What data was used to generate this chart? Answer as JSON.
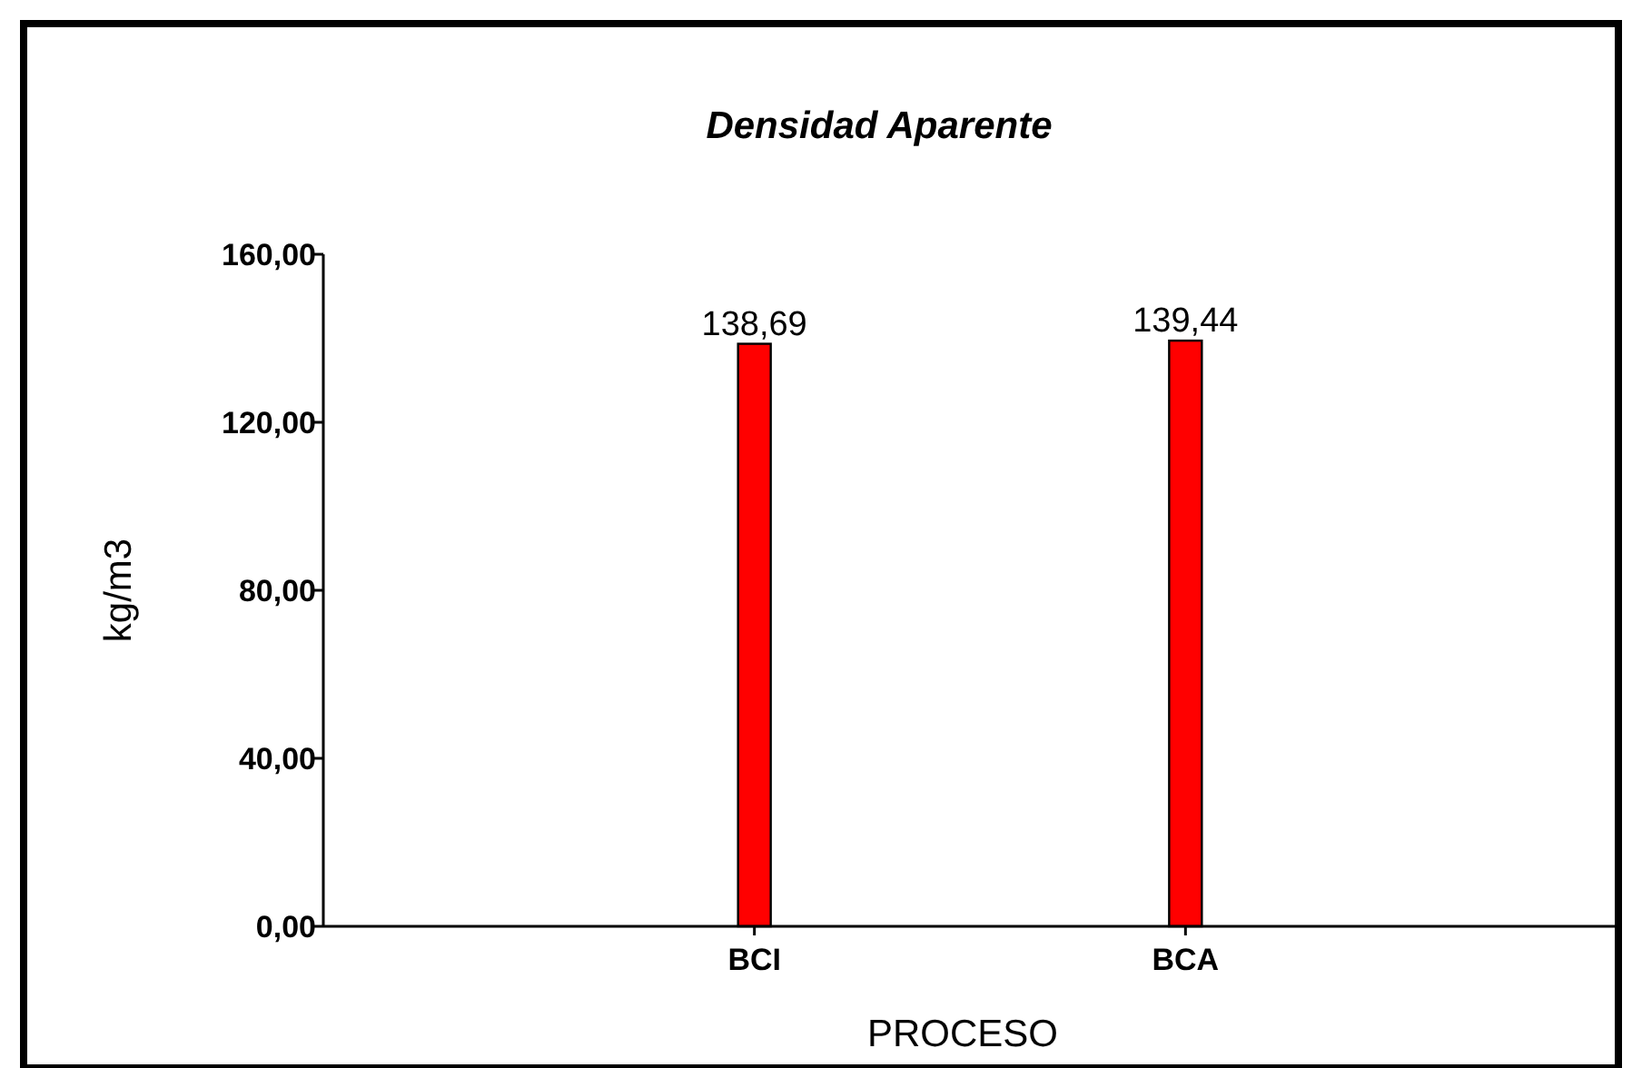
{
  "chart_data": {
    "type": "bar",
    "title": "Densidad Aparente",
    "xlabel": "PROCESO",
    "ylabel": "kg/m3",
    "categories": [
      "BCI",
      "BCA"
    ],
    "values": [
      138.69,
      139.44
    ],
    "color": "#ff0000",
    "value_labels": [
      "138,69",
      "139,44"
    ],
    "ylim": [
      0,
      160
    ],
    "yticks": [
      {
        "value": 0,
        "label": "0,00"
      },
      {
        "value": 40,
        "label": "40,00"
      },
      {
        "value": 80,
        "label": "80,00"
      },
      {
        "value": 120,
        "label": "120,00"
      },
      {
        "value": 160,
        "label": "160,00"
      }
    ],
    "grid": false
  }
}
